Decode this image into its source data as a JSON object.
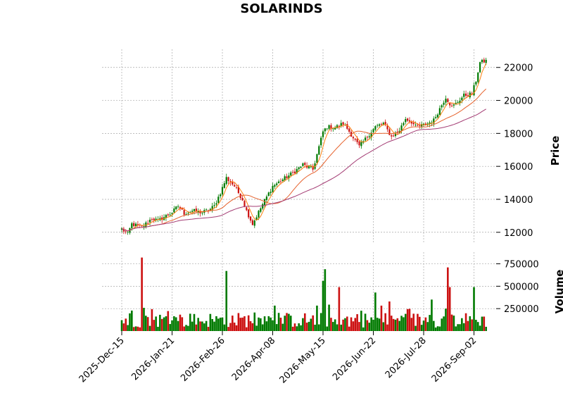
{
  "chart_data": {
    "type": "candlestick",
    "title": "SOLARINDS",
    "price_panel": {
      "ylabel": "Price",
      "ylim": [
        11350,
        23100
      ],
      "yticks": [
        12000,
        14000,
        16000,
        18000,
        20000,
        22000
      ],
      "ytick_labels": [
        "12000",
        "14000",
        "16000",
        "18000",
        "20000",
        "22000"
      ],
      "grid": true
    },
    "volume_panel": {
      "ylabel": "Volume",
      "ylim": [
        0,
        880000
      ],
      "yticks": [
        250000,
        500000,
        750000
      ],
      "ytick_labels": [
        "250000",
        "500000",
        "750000"
      ],
      "grid": true
    },
    "xaxis": {
      "tick_labels": [
        "2025-Dec-15",
        "2026-Jan-21",
        "2026-Feb-26",
        "2026-Apr-08",
        "2026-May-15",
        "2026-Jun-22",
        "2026-Jul-28",
        "2026-Sep-02"
      ],
      "tick_sessions": [
        0,
        25,
        50,
        75,
        100,
        125,
        150,
        175
      ]
    },
    "price_anchors": {
      "sessions": [
        0,
        3,
        5,
        10,
        15,
        18,
        20,
        25,
        28,
        31,
        35,
        40,
        44,
        46,
        49,
        52,
        56,
        60,
        62,
        65,
        70,
        75,
        80,
        85,
        90,
        95,
        100,
        102,
        106,
        110,
        112,
        118,
        122,
        126,
        130,
        134,
        138,
        141,
        144,
        146,
        150,
        152,
        155,
        161,
        164,
        166,
        170,
        174,
        176,
        178,
        181
      ],
      "close": [
        12200,
        11900,
        12500,
        12300,
        12850,
        12700,
        12850,
        13200,
        13600,
        13150,
        13300,
        13200,
        13400,
        13600,
        14400,
        15300,
        14800,
        14000,
        13300,
        12500,
        13700,
        14800,
        15200,
        15600,
        16100,
        15800,
        18100,
        18400,
        18350,
        18600,
        18300,
        17200,
        17800,
        18400,
        18600,
        17800,
        18200,
        18900,
        18700,
        18400,
        18500,
        18600,
        18800,
        20200,
        19600,
        19800,
        20300,
        20400,
        21200,
        22300,
        22400
      ]
    },
    "candles": {
      "count": 182,
      "up_color": "#007a00",
      "down_color": "#cc1111"
    },
    "moving_averages": [
      {
        "window": 5,
        "color": "#ff7f0e"
      },
      {
        "window": 20,
        "color": "#e6622d"
      },
      {
        "window": 50,
        "color": "#a33b73"
      }
    ],
    "volume": {
      "typical_level": 130000,
      "spikes": [
        {
          "session": 10,
          "value": 820000
        },
        {
          "session": 52,
          "value": 670000
        },
        {
          "session": 101,
          "value": 690000
        },
        {
          "session": 100,
          "value": 560000
        },
        {
          "session": 108,
          "value": 490000
        },
        {
          "session": 162,
          "value": 710000
        },
        {
          "session": 163,
          "value": 490000
        },
        {
          "session": 175,
          "value": 490000
        },
        {
          "session": 133,
          "value": 330000
        },
        {
          "session": 126,
          "value": 430000
        }
      ]
    }
  }
}
